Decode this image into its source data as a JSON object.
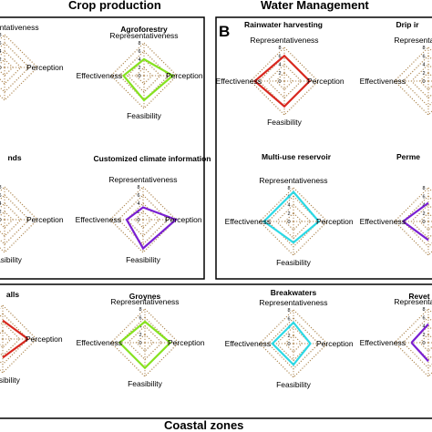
{
  "panels": [
    {
      "heading": "Crop production",
      "letter": ""
    },
    {
      "heading": "Water Management",
      "letter": "B"
    },
    {
      "heading": "Coastal zones",
      "letter": ""
    }
  ],
  "axis_labels": {
    "top": "Representativeness",
    "right": "Perception",
    "bottom": "Feasibility",
    "left": "Effectiveness"
  },
  "colors": {
    "red": "#d8281f",
    "green": "#86e21f",
    "purple": "#7a1fd2",
    "cyan": "#2bd9e6",
    "grid": "#b08a55"
  },
  "chart_data": {
    "type": "radar",
    "axes": [
      "Representativeness",
      "Perception",
      "Feasibility",
      "Effectiveness"
    ],
    "scale": [
      0,
      8
    ],
    "ticks": [
      "0",
      "2",
      "4",
      "6",
      "8"
    ],
    "charts": [
      {
        "title": "",
        "color": "",
        "values": [
          null,
          null,
          null,
          null
        ],
        "show_axes": [
          "top",
          "right"
        ]
      },
      {
        "title": "Agroforestry",
        "color": "#86e21f",
        "values": [
          4,
          7,
          6,
          5
        ],
        "show_axes": [
          "top",
          "right",
          "bottom",
          "left"
        ]
      },
      {
        "title": "nds",
        "color": "",
        "values": [
          null,
          null,
          null,
          null
        ],
        "show_axes": [
          "right",
          "bottom"
        ]
      },
      {
        "title": "Customized climate information",
        "color": "#7a1fd2",
        "values": [
          3,
          8,
          7,
          4
        ],
        "show_axes": [
          "top",
          "right",
          "bottom",
          "left"
        ]
      },
      {
        "title": "Rainwater harvesting",
        "color": "#d8281f",
        "values": [
          6,
          6,
          6,
          7
        ],
        "show_axes": [
          "top",
          "right",
          "bottom",
          "left"
        ]
      },
      {
        "title": "Drip ir",
        "color": "",
        "values": [
          null,
          null,
          null,
          null
        ],
        "show_axes": [
          "top",
          "left"
        ]
      },
      {
        "title": "Multi-use reservoir",
        "color": "#2bd9e6",
        "values": [
          7,
          6,
          5,
          7
        ],
        "show_axes": [
          "top",
          "right",
          "bottom",
          "left"
        ]
      },
      {
        "title": "Perme",
        "color": "#7a1fd2",
        "values": [
          null,
          null,
          null,
          6
        ],
        "show_axes": [
          "left"
        ]
      },
      {
        "title": "alls",
        "color": "#d8281f",
        "values": [
          null,
          6,
          null,
          null
        ],
        "show_axes": [
          "right",
          "bottom"
        ]
      },
      {
        "title": "Groynes",
        "color": "#86e21f",
        "values": [
          5,
          6,
          6,
          6
        ],
        "show_axes": [
          "top",
          "right",
          "bottom",
          "left"
        ]
      },
      {
        "title": "Breakwaters",
        "color": "#2bd9e6",
        "values": [
          5,
          4,
          5,
          5
        ],
        "show_axes": [
          "top",
          "right",
          "bottom",
          "left"
        ]
      },
      {
        "title": "Revet",
        "color": "#7a1fd2",
        "values": [
          null,
          null,
          null,
          4
        ],
        "show_axes": [
          "top",
          "left"
        ]
      }
    ]
  }
}
